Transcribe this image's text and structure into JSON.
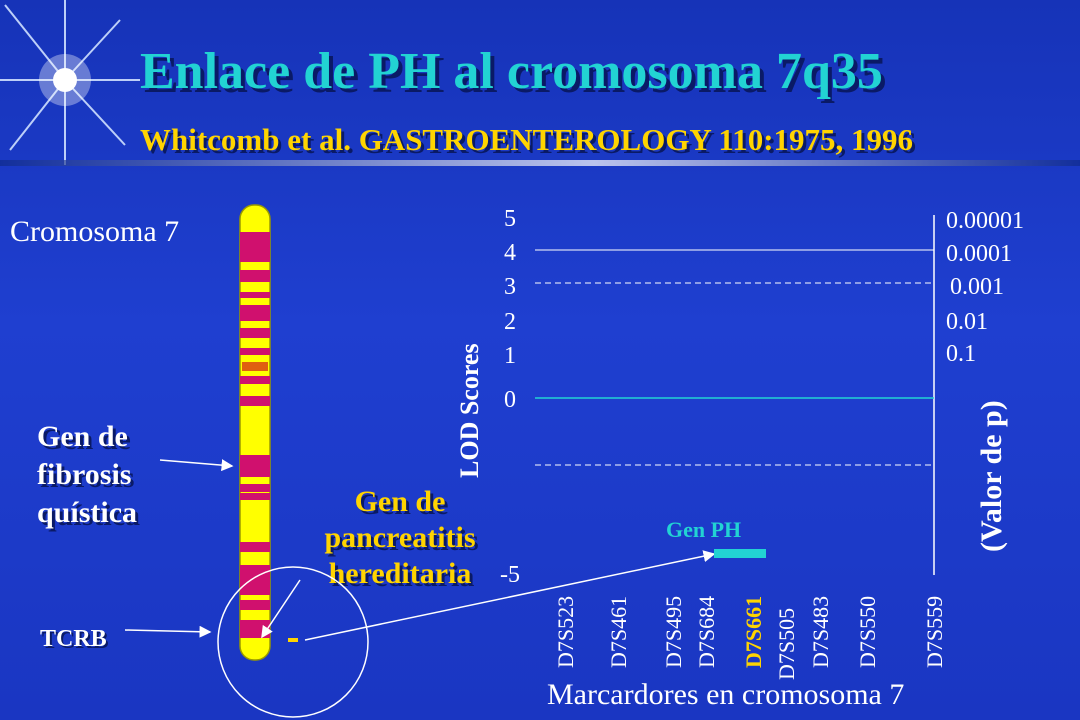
{
  "header": {
    "title": "Enlace de PH al cromosoma 7q35",
    "subtitle": "Whitcomb et al. GASTROENTEROLOGY 110:1975, 1996"
  },
  "chromosome": {
    "label": "Cromosoma 7",
    "gene_fibrosis": [
      "Gen de",
      "fibrosis",
      "quística"
    ],
    "gene_pancreatitis": [
      "Gen de",
      "pancreatitis",
      "hereditaria"
    ],
    "tcrb": "TCRB"
  },
  "chart_data": {
    "type": "line",
    "ylabel": "LOD Scores",
    "y2label": "(Valor de p)",
    "xlabel": "Marcardores en cromosoma 7",
    "lod_ticks": [
      "5",
      "4",
      "3",
      "2",
      "1",
      "0",
      "-5"
    ],
    "p_ticks": [
      "0.00001",
      "0.0001",
      "0.001",
      "0.01",
      "0.1"
    ],
    "markers": [
      "D7S523",
      "D7S461",
      "D7S495",
      "D7S684",
      "D7S661",
      "D7S505",
      "D7S483",
      "D7S550",
      "D7S559"
    ],
    "highlight_marker": "D7S661",
    "gene_label": "Gen PH",
    "colors": {
      "highlight": "#ffd400",
      "gene_bar": "#22d3d3"
    }
  }
}
